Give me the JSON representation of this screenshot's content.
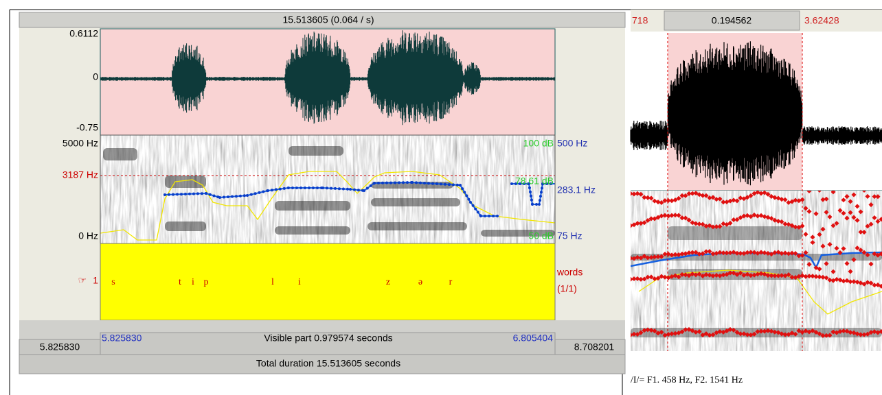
{
  "left_window": {
    "top_bar": "15.513605 (0.064 / s)",
    "waveform_axis": [
      "0.6112",
      "0",
      "-0.75"
    ],
    "frequency_axis": [
      "5000 Hz",
      "3187 Hz",
      "0 Hz"
    ],
    "intensity_axis": [
      "100 dB",
      "78.61 dB",
      "50 dB"
    ],
    "pitch_axis": [
      "500 Hz",
      "283.1 Hz",
      "75 Hz"
    ],
    "tier": {
      "pointer": "☞",
      "number": "1",
      "name": "words",
      "count": "(1/1)",
      "labels": [
        "s",
        "t",
        "i",
        "p",
        "l",
        "i",
        "z",
        "ə",
        "r"
      ]
    },
    "bottom_bar": {
      "window_start": "5.825830",
      "visible_start": "5.825830",
      "visible_part": "Visible part 0.979574 seconds",
      "visible_end": "6.805404",
      "window_end": "8.708201"
    },
    "total_duration": "Total duration 15.513605 seconds"
  },
  "right_window": {
    "left_time": "718",
    "selection": "0.194562",
    "right_time": "3.62428"
  },
  "caption": "/I/= F1. 458 Hz, F2. 1541 Hz"
}
